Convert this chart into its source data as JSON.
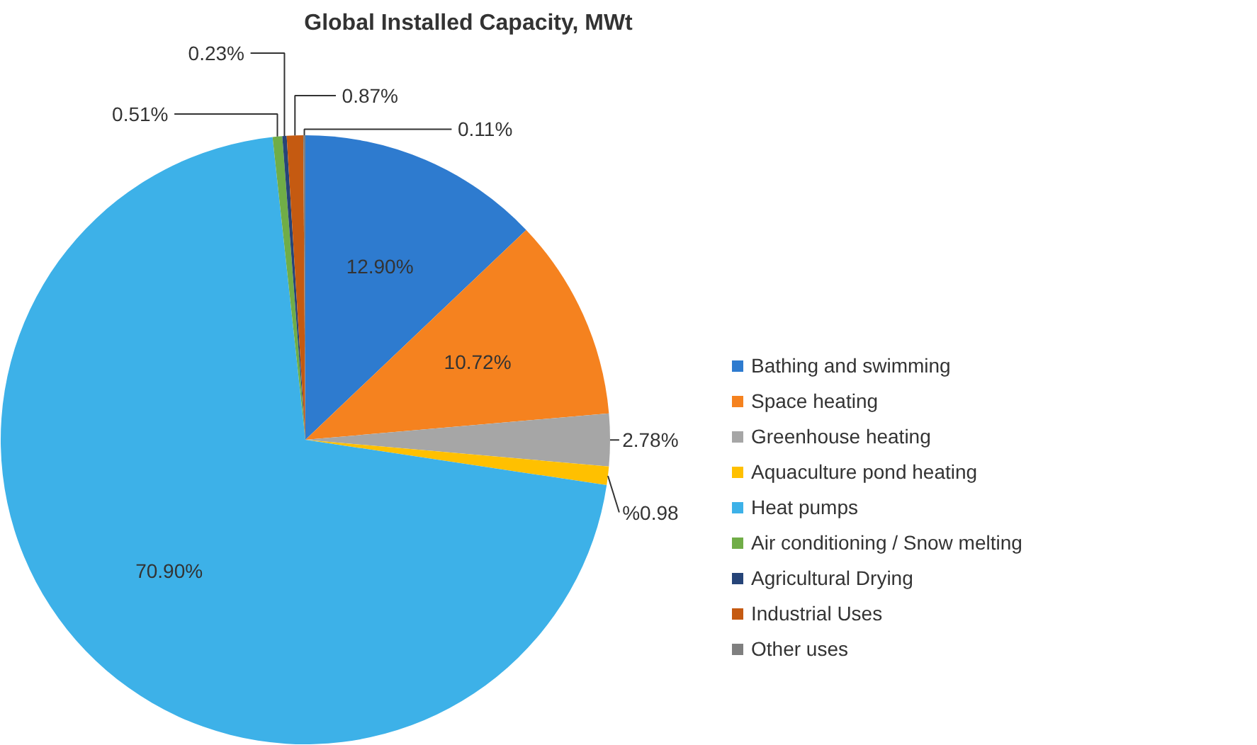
{
  "chart_data": {
    "type": "pie",
    "title": "Global Installed Capacity, MWt",
    "categories": [
      "Bathing and swimming",
      "Space heating",
      "Greenhouse heating",
      "Aquaculture pond heating",
      "Heat pumps",
      "Air conditioning / Snow melting",
      "Agricultural Drying",
      "Industrial Uses",
      "Other uses"
    ],
    "values": [
      12.9,
      10.72,
      2.78,
      0.98,
      70.9,
      0.51,
      0.23,
      0.87,
      0.11
    ],
    "value_labels": [
      "12.90%",
      "10.72%",
      "2.78%",
      "%0.98",
      "70.90%",
      "0.51%",
      "0.23%",
      "0.87%",
      "0.11%"
    ],
    "colors": [
      "#2e7bcf",
      "#f5821f",
      "#a6a6a6",
      "#ffc000",
      "#3db1e8",
      "#70ad47",
      "#264478",
      "#c55a11",
      "#7f7f7f"
    ],
    "legend": "right"
  }
}
